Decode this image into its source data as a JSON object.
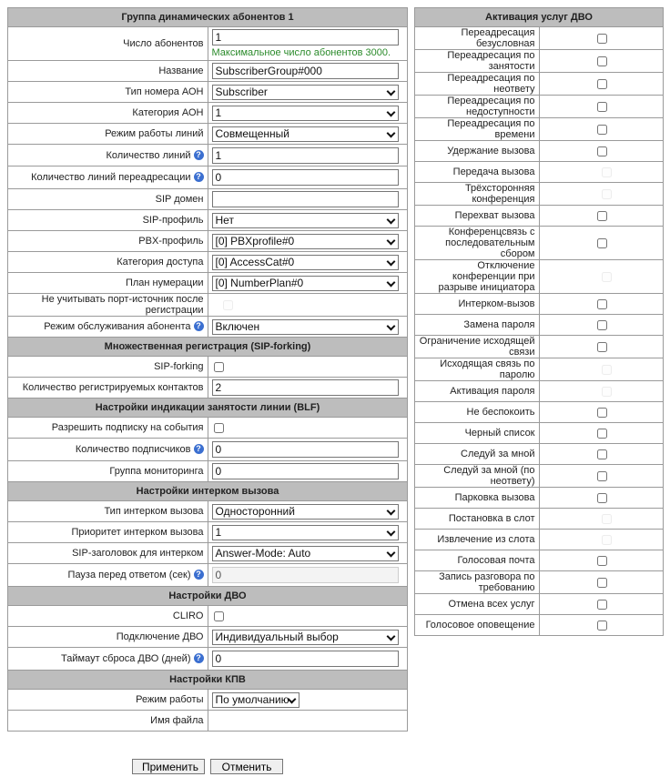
{
  "left": [
    {
      "header": "Группа динамических абонентов 1"
    },
    {
      "label": "Число абонентов",
      "type": "input",
      "value": "1",
      "hint": "Максимальное число абонентов 3000."
    },
    {
      "label": "Название",
      "type": "input",
      "value": "SubscriberGroup#000"
    },
    {
      "label": "Тип номера АОН",
      "type": "select",
      "value": "Subscriber"
    },
    {
      "label": "Категория АОН",
      "type": "select",
      "value": "1"
    },
    {
      "label": "Режим работы линий",
      "type": "select",
      "value": "Совмещенный"
    },
    {
      "label": "Количество линий",
      "type": "input",
      "value": "1",
      "help": true
    },
    {
      "label": "Количество линий переадресации",
      "type": "input",
      "value": "0",
      "help": true
    },
    {
      "label": "SIP домен",
      "type": "input",
      "value": ""
    },
    {
      "label": "SIP-профиль",
      "type": "select",
      "value": "Нет"
    },
    {
      "label": "PBX-профиль",
      "type": "select",
      "value": "[0] PBXprofile#0"
    },
    {
      "label": "Категория доступа",
      "type": "select",
      "value": "[0] AccessCat#0"
    },
    {
      "label": "План нумерации",
      "type": "select",
      "value": "[0] NumberPlan#0"
    },
    {
      "label": "Не учитывать порт-источник после регистрации",
      "type": "checkbox",
      "checked": false,
      "disabled": true
    },
    {
      "label": "Режим обслуживания абонента",
      "type": "select",
      "value": "Включен",
      "help": true
    },
    {
      "header": "Множественная регистрация (SIP-forking)"
    },
    {
      "label": "SIP-forking",
      "type": "checkbox",
      "checked": false
    },
    {
      "label": "Количество регистрируемых контактов",
      "type": "input",
      "value": "2"
    },
    {
      "header": "Настройки индикации занятости линии (BLF)"
    },
    {
      "label": "Разрешить подписку на события",
      "type": "checkbox",
      "checked": false
    },
    {
      "label": "Количество подписчиков",
      "type": "input",
      "value": "0",
      "help": true
    },
    {
      "label": "Группа мониторинга",
      "type": "input",
      "value": "0"
    },
    {
      "header": "Настройки интерком вызова"
    },
    {
      "label": "Тип интерком вызова",
      "type": "select",
      "value": "Односторонний"
    },
    {
      "label": "Приоритет интерком вызова",
      "type": "select",
      "value": "1"
    },
    {
      "label": "SIP-заголовок для интерком",
      "type": "select",
      "value": "Answer-Mode: Auto"
    },
    {
      "label": "Пауза перед ответом (сек)",
      "type": "input",
      "value": "0",
      "help": true,
      "disabled": true
    },
    {
      "header": "Настройки ДВО"
    },
    {
      "label": "CLIRO",
      "type": "checkbox",
      "checked": false
    },
    {
      "label": "Подключение ДВО",
      "type": "select",
      "value": "Индивидуальный выбор"
    },
    {
      "label": "Таймаут сброса ДВО (дней)",
      "type": "input",
      "value": "0",
      "help": true
    },
    {
      "header": "Настройки КПВ"
    },
    {
      "label": "Режим работы",
      "type": "select",
      "value": "По умолчанию",
      "short": true
    },
    {
      "label": "Имя файла",
      "type": "text"
    }
  ],
  "right": {
    "header": "Активация услуг ДВО",
    "items": [
      {
        "label": "Переадресация безусловная",
        "disabled": false
      },
      {
        "label": "Переадресация по занятости",
        "disabled": false
      },
      {
        "label": "Переадресация по неответу",
        "disabled": false
      },
      {
        "label": "Переадресация по недоступности",
        "disabled": false
      },
      {
        "label": "Переадресация по времени",
        "disabled": false
      },
      {
        "label": "Удержание вызова",
        "disabled": false
      },
      {
        "label": "Передача вызова",
        "disabled": true
      },
      {
        "label": "Трёхсторонняя конференция",
        "disabled": true
      },
      {
        "label": "Перехват вызова",
        "disabled": false
      },
      {
        "label": "Конференцсвязь с последовательным сбором",
        "disabled": false
      },
      {
        "label": "Отключение конференции при разрыве инициатора",
        "disabled": true
      },
      {
        "label": "Интерком-вызов",
        "disabled": false
      },
      {
        "label": "Замена пароля",
        "disabled": false
      },
      {
        "label": "Ограничение исходящей связи",
        "disabled": false
      },
      {
        "label": "Исходящая связь по паролю",
        "disabled": true
      },
      {
        "label": "Активация пароля",
        "disabled": true
      },
      {
        "label": "Не беспокоить",
        "disabled": false
      },
      {
        "label": "Черный список",
        "disabled": false
      },
      {
        "label": "Следуй за мной",
        "disabled": false
      },
      {
        "label": "Следуй за мной (по неответу)",
        "disabled": false
      },
      {
        "label": "Парковка вызова",
        "disabled": false
      },
      {
        "label": "Постановка в слот",
        "disabled": true
      },
      {
        "label": "Извлечение из слота",
        "disabled": true
      },
      {
        "label": "Голосовая почта",
        "disabled": false
      },
      {
        "label": "Запись разговора по требованию",
        "disabled": false
      },
      {
        "label": "Отмена всех услуг",
        "disabled": false
      },
      {
        "label": "Голосовое оповещение",
        "disabled": false
      }
    ]
  },
  "buttons": {
    "apply": "Применить",
    "cancel": "Отменить"
  },
  "help_icon_glyph": "?"
}
